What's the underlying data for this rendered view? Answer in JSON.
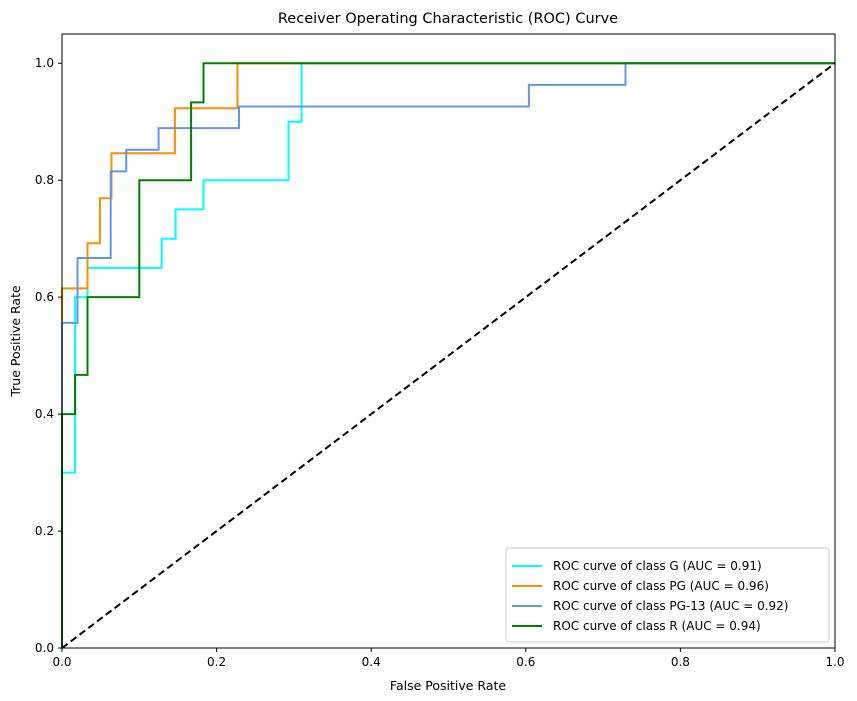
{
  "chart_data": {
    "type": "line",
    "title": "Receiver Operating Characteristic (ROC) Curve",
    "xlabel": "False Positive Rate",
    "ylabel": "True Positive Rate",
    "xlim": [
      0.0,
      1.0
    ],
    "ylim": [
      0.0,
      1.05
    ],
    "x_ticks": [
      "0.0",
      "0.2",
      "0.4",
      "0.6",
      "0.8",
      "1.0"
    ],
    "y_ticks": [
      "0.0",
      "0.2",
      "0.4",
      "0.6",
      "0.8",
      "1.0"
    ],
    "grid": false,
    "legend_position": "lower-right",
    "series": [
      {
        "name": "ROC curve of class G (AUC = 0.91)",
        "color": "#00ffff",
        "x": [
          0.0,
          0.0,
          0.017,
          0.017,
          0.033,
          0.033,
          0.129,
          0.129,
          0.147,
          0.147,
          0.183,
          0.183,
          0.293,
          0.293,
          0.31,
          0.31,
          1.0
        ],
        "y": [
          0.0,
          0.3,
          0.3,
          0.6,
          0.6,
          0.65,
          0.65,
          0.7,
          0.7,
          0.75,
          0.75,
          0.8,
          0.8,
          0.9,
          0.9,
          1.0,
          1.0
        ]
      },
      {
        "name": "ROC curve of class PG (AUC = 0.96)",
        "color": "#ff8c00",
        "x": [
          0.0,
          0.0,
          0.033,
          0.033,
          0.049,
          0.049,
          0.064,
          0.064,
          0.146,
          0.146,
          0.227,
          0.227,
          1.0
        ],
        "y": [
          0.0,
          0.615,
          0.615,
          0.692,
          0.692,
          0.769,
          0.769,
          0.846,
          0.846,
          0.923,
          0.923,
          1.0,
          1.0
        ]
      },
      {
        "name": "ROC curve of class PG-13 (AUC = 0.92)",
        "color": "#6495ed",
        "x": [
          0.0,
          0.0,
          0.02,
          0.02,
          0.063,
          0.063,
          0.083,
          0.083,
          0.125,
          0.125,
          0.229,
          0.229,
          0.604,
          0.604,
          0.729,
          0.729,
          1.0
        ],
        "y": [
          0.0,
          0.556,
          0.556,
          0.667,
          0.667,
          0.815,
          0.815,
          0.852,
          0.852,
          0.889,
          0.889,
          0.926,
          0.926,
          0.963,
          0.963,
          1.0,
          1.0
        ]
      },
      {
        "name": "ROC curve of class R (AUC = 0.94)",
        "color": "#008000",
        "x": [
          0.0,
          0.0,
          0.017,
          0.017,
          0.033,
          0.033,
          0.1,
          0.1,
          0.167,
          0.167,
          0.183,
          0.183,
          1.0
        ],
        "y": [
          0.0,
          0.4,
          0.4,
          0.467,
          0.467,
          0.6,
          0.6,
          0.8,
          0.8,
          0.933,
          0.933,
          1.0,
          1.0
        ]
      }
    ],
    "reference_line": {
      "style": "dashed",
      "color": "#000000",
      "x": [
        0.0,
        1.0
      ],
      "y": [
        0.0,
        1.0
      ]
    }
  }
}
